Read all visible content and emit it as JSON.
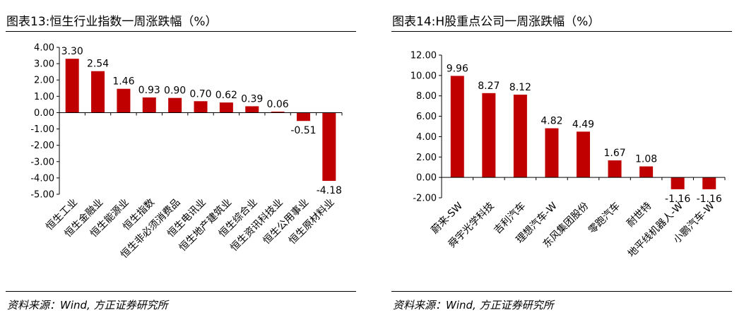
{
  "charts": [
    {
      "title": "图表13:恒生行业指数一周涨跌幅（%）",
      "source": "资料来源：Wind, 方正证券研究所",
      "chart_data": {
        "type": "bar",
        "categories": [
          "恒生工业",
          "恒生金融业",
          "恒生能源业",
          "恒生指数",
          "恒生非必须消费品",
          "恒生电讯业",
          "恒生地产建筑业",
          "恒生综合业",
          "恒生资讯科技业",
          "恒生公用事业",
          "恒生原材料业"
        ],
        "values": [
          3.3,
          2.54,
          1.46,
          0.93,
          0.9,
          0.7,
          0.62,
          0.39,
          0.06,
          -0.51,
          -4.18
        ],
        "value_labels": [
          "3.30",
          "2.54",
          "1.46",
          "0.93",
          "0.90",
          "0.70",
          "0.62",
          "0.39",
          "0.06",
          "-0.51",
          "-4.18"
        ],
        "y_ticks": [
          "4.00",
          "3.00",
          "2.00",
          "1.00",
          "0.00",
          "-1.00",
          "-2.00",
          "-3.00",
          "-4.00",
          "-5.00"
        ],
        "ylim": [
          -5,
          4
        ],
        "color": "#c00000",
        "grid": false
      }
    },
    {
      "title": "图表14:H股重点公司一周涨跌幅（%）",
      "source": "资料来源：Wind, 方正证券研究所",
      "chart_data": {
        "type": "bar",
        "categories": [
          "蔚来-SW",
          "舜宇光学科技",
          "吉利汽车",
          "理想汽车-W",
          "东风集团股份",
          "零跑汽车",
          "耐世特",
          "地平线机器人-W",
          "小鹏汽车-W"
        ],
        "values": [
          9.96,
          8.27,
          8.12,
          4.82,
          4.49,
          1.67,
          1.08,
          -1.16,
          -1.16
        ],
        "value_labels": [
          "9.96",
          "8.27",
          "8.12",
          "4.82",
          "4.49",
          "1.67",
          "1.08",
          "-1.16",
          "-1.16"
        ],
        "y_ticks": [
          "12.00",
          "10.00",
          "8.00",
          "6.00",
          "4.00",
          "2.00",
          "0.00",
          "-2.00"
        ],
        "ylim": [
          -2,
          12
        ],
        "color": "#c00000",
        "grid": false
      }
    }
  ]
}
